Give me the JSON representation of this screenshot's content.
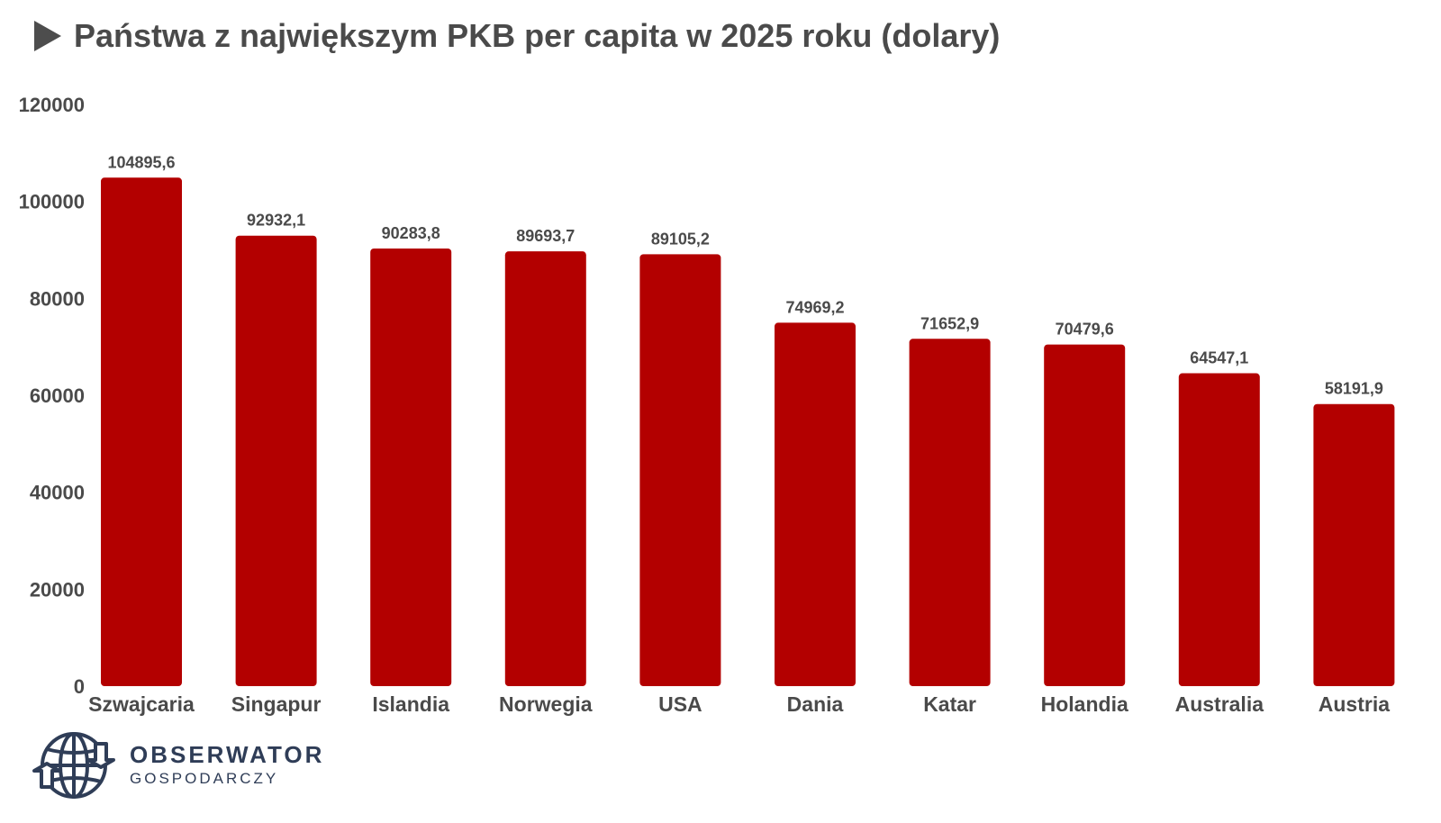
{
  "chart_data": {
    "type": "bar",
    "title": "Państwa z największym PKB per capita w 2025 roku (dolary)",
    "xlabel": "",
    "ylabel": "",
    "ylim": [
      0,
      120000
    ],
    "yticks": [
      0,
      20000,
      40000,
      60000,
      80000,
      100000,
      120000
    ],
    "grid": false,
    "categories": [
      "Szwajcaria",
      "Singapur",
      "Islandia",
      "Norwegia",
      "USA",
      "Dania",
      "Katar",
      "Holandia",
      "Australia",
      "Austria"
    ],
    "values": [
      104895.6,
      92932.1,
      90283.8,
      89693.7,
      89105.2,
      74969.2,
      71652.9,
      70479.6,
      64547.1,
      58191.9
    ],
    "data_labels": [
      "104895,6",
      "92932,1",
      "90283,8",
      "89693,7",
      "89105,2",
      "74969,2",
      "71652,9",
      "70479,6",
      "64547,1",
      "58191,9"
    ],
    "bar_color": "#b30000"
  },
  "header": {
    "title": "Państwa z największym PKB per capita w 2025 roku (dolary)",
    "icon": "play-triangle-icon"
  },
  "logo": {
    "line1": "OBSERWATOR",
    "line2": "GOSPODARCZY",
    "icon": "globe-icon",
    "color": "#2f3d57"
  }
}
